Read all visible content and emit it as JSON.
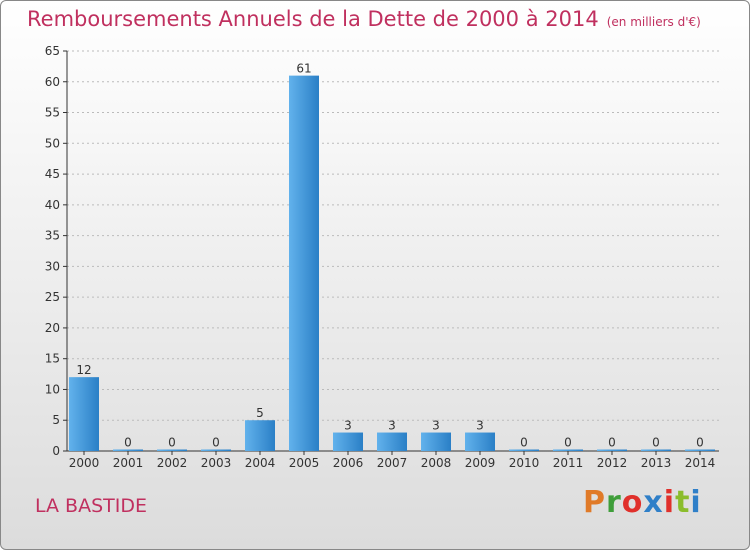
{
  "header": {
    "title": "Remboursements Annuels de la Dette de 2000 à 2014",
    "unit": "(en milliers d'€)"
  },
  "footer": {
    "commune": "LA BASTIDE",
    "brand": "Proxiti"
  },
  "colors": {
    "title": "#c0305f",
    "bar_light": "#62b2ec",
    "bar_dark": "#2a7fc6",
    "axis": "#333333",
    "grid": "#bbbbbb",
    "brand_letters": [
      "#e07a28",
      "#3f9e3a",
      "#e0302b",
      "#2f7fc8",
      "#e0302b",
      "#8bbd2c",
      "#2f7fc8"
    ]
  },
  "chart_data": {
    "type": "bar",
    "title": "Remboursements Annuels de la Dette de 2000 à 2014",
    "xlabel": "",
    "ylabel": "",
    "categories": [
      "2000",
      "2001",
      "2002",
      "2003",
      "2004",
      "2005",
      "2006",
      "2007",
      "2008",
      "2009",
      "2010",
      "2011",
      "2012",
      "2013",
      "2014"
    ],
    "values": [
      12,
      0,
      0,
      0,
      5,
      61,
      3,
      3,
      3,
      3,
      0,
      0,
      0,
      0,
      0
    ],
    "value_labels": [
      "12",
      "0",
      "0",
      "0",
      "5",
      "61",
      "3",
      "3",
      "3",
      "3",
      "0",
      "0",
      "0",
      "0",
      "0"
    ],
    "ylim": [
      0,
      65
    ],
    "yticks": [
      0,
      5,
      10,
      15,
      20,
      25,
      30,
      35,
      40,
      45,
      50,
      55,
      60,
      65
    ],
    "ytick_labels": [
      "0",
      "5",
      "10",
      "15",
      "20",
      "25",
      "30",
      "35",
      "40",
      "45",
      "50",
      "55",
      "60",
      "65"
    ],
    "grid": "horizontal dashed"
  }
}
